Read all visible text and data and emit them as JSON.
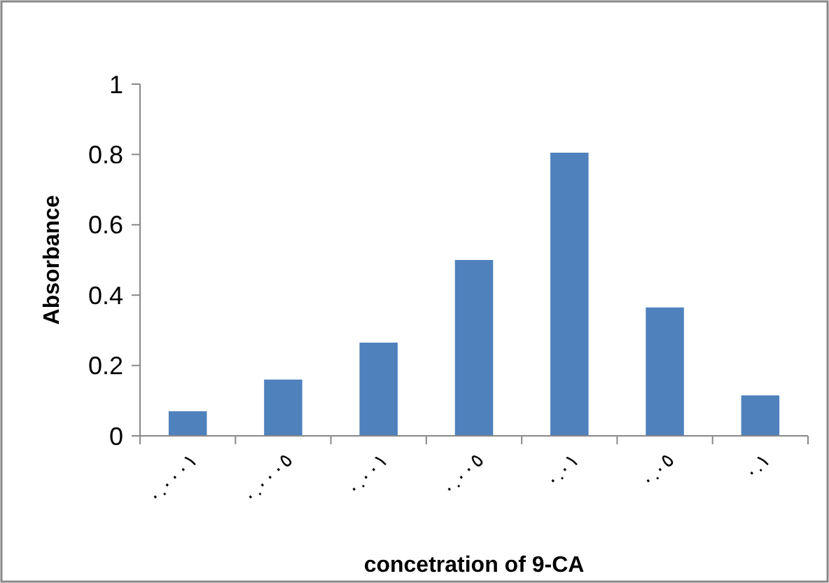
{
  "chart_data": {
    "type": "bar",
    "categories": [
      "٠.٠٠٠١",
      "٠.٠٠٠٥",
      "٠.٠٠١",
      "٠.٠٠٥",
      "٠.٠١",
      "٠.٠٥",
      "٠.١"
    ],
    "values": [
      0.07,
      0.16,
      0.265,
      0.5,
      0.805,
      0.365,
      0.115
    ],
    "color": "#4f81bd",
    "xlabel": "concetration of 9-CA",
    "ylabel": "Absorbance",
    "ylim": [
      0,
      1
    ],
    "yticks": [
      0,
      0.2,
      0.4,
      0.6,
      0.8,
      1
    ],
    "grid": false
  }
}
